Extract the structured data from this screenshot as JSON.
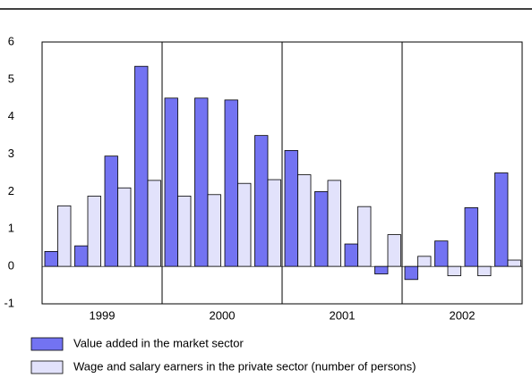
{
  "chart_data": {
    "type": "bar",
    "categories": [
      null,
      null,
      null,
      null,
      null,
      null,
      null,
      null,
      null,
      null,
      null,
      null,
      null,
      null,
      null,
      null
    ],
    "groups": [
      "1999",
      "2000",
      "2001",
      "2002"
    ],
    "series": [
      {
        "name": "Value added in the market sector",
        "color": "#7373f2",
        "values": [
          0.4,
          0.55,
          2.95,
          5.35,
          4.5,
          4.5,
          4.45,
          3.5,
          3.1,
          2.0,
          0.6,
          -0.2,
          -0.35,
          0.68,
          1.57,
          2.5
        ]
      },
      {
        "name": "Wage and salary earners in the private sector (number of persons)",
        "color": "#e2e2fb",
        "values": [
          1.62,
          1.88,
          2.1,
          2.3,
          1.88,
          1.92,
          2.22,
          2.32,
          2.45,
          2.3,
          1.6,
          0.85,
          0.27,
          -0.25,
          -0.25,
          0.17
        ]
      }
    ],
    "ylim": [
      -1,
      6
    ],
    "yticks": [
      -1,
      0,
      1,
      2,
      3,
      4,
      5,
      6
    ],
    "grid": false
  }
}
